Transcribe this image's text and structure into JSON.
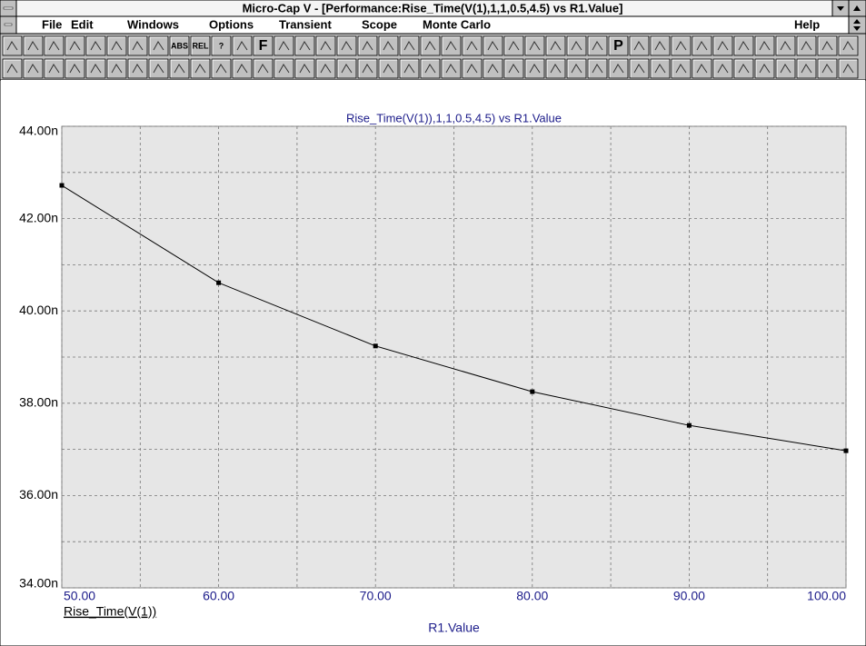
{
  "window": {
    "title": "Micro-Cap V - [Performance:Rise_Time(V(1),1,1,0.5,4.5) vs R1.Value]",
    "menu": [
      "File",
      "Edit",
      "Windows",
      "Options",
      "Transient",
      "Scope",
      "Monte Carlo"
    ],
    "help": "Help",
    "toolbar_labels": [
      "ABS",
      "REL",
      "?",
      "F",
      "P"
    ]
  },
  "chart_data": {
    "type": "line",
    "title": "Rise_Time(V(1)),1,1,0.5,4.5) vs R1.Value",
    "x_label": "R1.Value",
    "x": [
      50,
      60,
      70,
      80,
      90,
      100
    ],
    "series": [
      {
        "name": "Rise_Time(V(1))",
        "color": "#000000",
        "values": [
          42.72,
          40.61,
          39.24,
          38.25,
          37.52,
          36.97
        ]
      }
    ],
    "xlim": [
      50,
      100
    ],
    "ylim": [
      34,
      44
    ],
    "xticks": [
      {
        "value": 50,
        "label": "50.00"
      },
      {
        "value": 60,
        "label": "60.00"
      },
      {
        "value": 70,
        "label": "70.00"
      },
      {
        "value": 80,
        "label": "80.00"
      },
      {
        "value": 90,
        "label": "90.00"
      },
      {
        "value": 100,
        "label": "100.00"
      }
    ],
    "yticks": [
      {
        "value": 34,
        "label": "34.00n"
      },
      {
        "value": 36,
        "label": "36.00n"
      },
      {
        "value": 38,
        "label": "38.00n"
      },
      {
        "value": 40,
        "label": "40.00n"
      },
      {
        "value": 42,
        "label": "42.00n"
      },
      {
        "value": 44,
        "label": "44.00n"
      }
    ],
    "x_minor_grid": [
      55,
      65,
      75,
      85,
      95
    ],
    "y_minor_grid": [
      35,
      37,
      39,
      41,
      43
    ],
    "grid": true,
    "plot_background": "#e6e6e6",
    "label_color": "#1c1c8a"
  }
}
